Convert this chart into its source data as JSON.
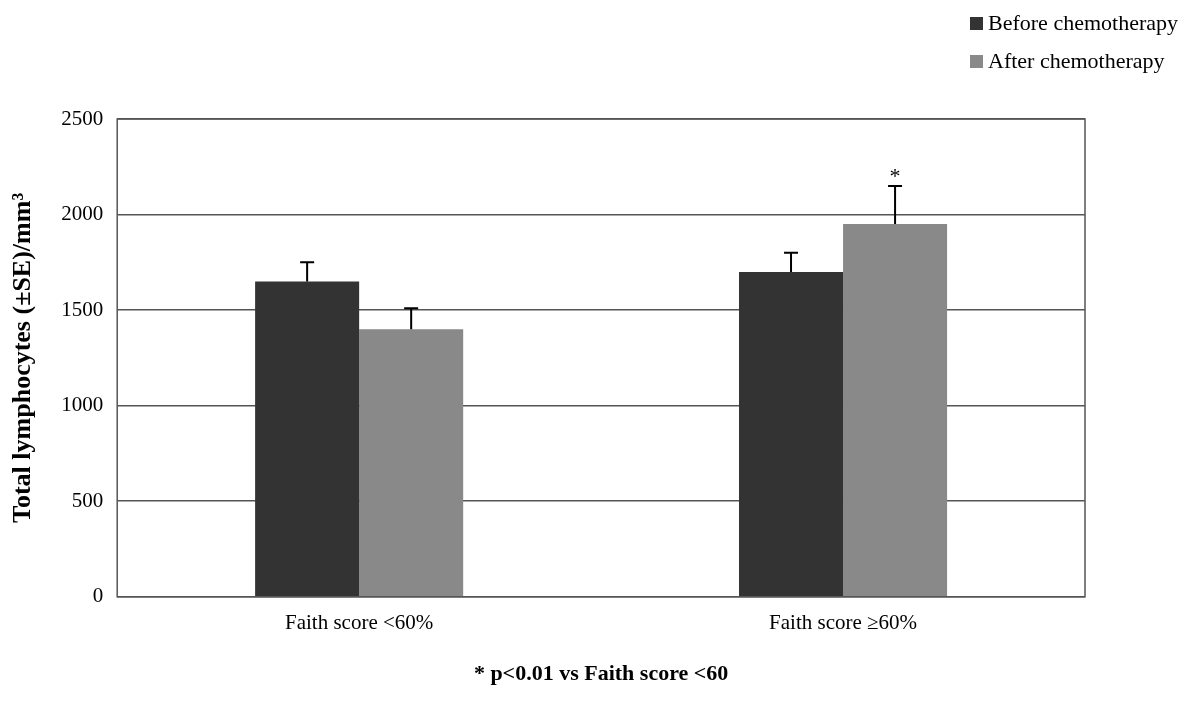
{
  "chart_data": {
    "type": "bar",
    "ylabel": "Total lymphocytes (±SE)/mm³",
    "categories": [
      "Faith score <60%",
      "Faith score ≥60%"
    ],
    "series": [
      {
        "name": "Before chemotherapy",
        "color": "#333333",
        "values": [
          1650,
          1700
        ],
        "errors": [
          [
            1650,
            1750
          ],
          [
            1700,
            1800
          ]
        ]
      },
      {
        "name": "After chemotherapy",
        "color": "#898989",
        "values": [
          1400,
          1950
        ],
        "errors": [
          [
            1400,
            1510
          ],
          [
            1950,
            2150
          ]
        ]
      }
    ],
    "ylim": [
      0,
      2500
    ],
    "yticks": [
      0,
      500,
      1000,
      1500,
      2000,
      2500
    ],
    "grid": "y",
    "legend": "top right",
    "annotations": [
      "*",
      "* p<0.01 vs Faith score <60"
    ]
  }
}
